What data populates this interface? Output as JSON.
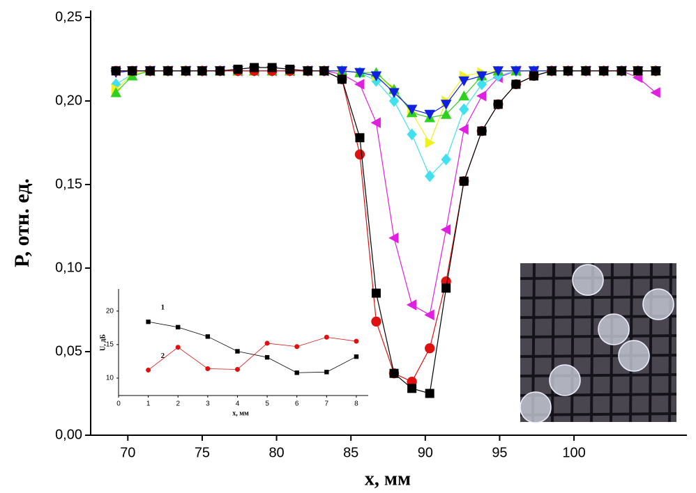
{
  "chart_data": [
    {
      "type": "line",
      "xlabel": "x, мм",
      "ylabel": "P, отн. ед.",
      "x": [
        69.2,
        70.3,
        71.5,
        72.7,
        73.9,
        75.0,
        76.2,
        77.4,
        78.5,
        79.7,
        80.9,
        82.1,
        83.2,
        84.4,
        85.6,
        86.7,
        87.9,
        89.1,
        90.3,
        91.4,
        92.6,
        93.8,
        94.9,
        96.1,
        97.3,
        98.5,
        99.6,
        100.8,
        102.0,
        103.2,
        104.3,
        105.5
      ],
      "xlim": [
        67.5,
        107.5
      ],
      "xticks": [
        70,
        75,
        80,
        85,
        90,
        95,
        100
      ],
      "ylim": [
        0,
        0.25
      ],
      "yticks": [
        {
          "value": 0,
          "label": "0,00"
        },
        {
          "value": 0.05,
          "label": "0,05"
        },
        {
          "value": 0.1,
          "label": "0,10"
        },
        {
          "value": 0.15,
          "label": "0,15"
        },
        {
          "value": 0.2,
          "label": "0,20"
        },
        {
          "value": 0.25,
          "label": "0,25"
        }
      ],
      "series": [
        {
          "color": "#e020e0",
          "marker": "triangle-left",
          "values": [
            0.218,
            0.218,
            0.218,
            0.218,
            0.218,
            0.218,
            0.218,
            0.218,
            0.218,
            0.218,
            0.218,
            0.218,
            0.218,
            0.216,
            0.21,
            0.187,
            0.118,
            0.078,
            0.072,
            0.123,
            0.183,
            0.203,
            0.214,
            0.218,
            0.218,
            0.218,
            0.218,
            0.218,
            0.218,
            0.218,
            0.214,
            0.205
          ]
        },
        {
          "color": "#40e0f0",
          "marker": "diamond",
          "values": [
            0.21,
            0.216,
            0.218,
            0.218,
            0.218,
            0.218,
            0.218,
            0.218,
            0.218,
            0.218,
            0.218,
            0.218,
            0.218,
            0.218,
            0.217,
            0.212,
            0.2,
            0.18,
            0.155,
            0.165,
            0.195,
            0.21,
            0.215,
            0.218,
            0.218,
            0.218,
            0.218,
            0.218,
            0.218,
            0.218,
            0.218,
            0.218
          ]
        },
        {
          "color": "#f0f020",
          "marker": "triangle-right",
          "values": [
            0.207,
            0.216,
            0.218,
            0.218,
            0.218,
            0.218,
            0.218,
            0.218,
            0.218,
            0.218,
            0.218,
            0.218,
            0.218,
            0.218,
            0.217,
            0.215,
            0.207,
            0.193,
            0.175,
            0.2,
            0.215,
            0.217,
            0.218,
            0.218,
            0.218,
            0.218,
            0.218,
            0.218,
            0.218,
            0.218,
            0.218,
            0.218
          ]
        },
        {
          "color": "#30d020",
          "marker": "triangle-up",
          "values": [
            0.205,
            0.215,
            0.218,
            0.218,
            0.218,
            0.218,
            0.218,
            0.218,
            0.218,
            0.218,
            0.218,
            0.218,
            0.218,
            0.218,
            0.217,
            0.217,
            0.207,
            0.193,
            0.19,
            0.192,
            0.203,
            0.215,
            0.218,
            0.218,
            0.218,
            0.218,
            0.218,
            0.218,
            0.218,
            0.218,
            0.218,
            0.218
          ]
        },
        {
          "color": "#1020e0",
          "marker": "triangle-down",
          "values": [
            0.217,
            0.218,
            0.218,
            0.218,
            0.218,
            0.218,
            0.218,
            0.218,
            0.218,
            0.218,
            0.218,
            0.218,
            0.218,
            0.218,
            0.217,
            0.215,
            0.205,
            0.195,
            0.192,
            0.198,
            0.212,
            0.215,
            0.218,
            0.218,
            0.218,
            0.218,
            0.218,
            0.218,
            0.218,
            0.218,
            0.218,
            0.218
          ]
        },
        {
          "color": "#e01010",
          "marker": "circle",
          "values": [
            0.218,
            0.218,
            0.218,
            0.218,
            0.218,
            0.218,
            0.218,
            0.218,
            0.218,
            0.218,
            0.218,
            0.218,
            0.218,
            0.213,
            0.168,
            0.068,
            0.037,
            0.032,
            0.052,
            0.092,
            0.152,
            0.182,
            0.198,
            0.21,
            0.215,
            0.218,
            0.218,
            0.218,
            0.218,
            0.218,
            0.218,
            0.218
          ]
        },
        {
          "color": "#000000",
          "marker": "square",
          "values": [
            0.218,
            0.218,
            0.218,
            0.218,
            0.218,
            0.218,
            0.218,
            0.219,
            0.22,
            0.22,
            0.219,
            0.218,
            0.218,
            0.213,
            0.178,
            0.085,
            0.037,
            0.028,
            0.025,
            0.088,
            0.152,
            0.182,
            0.198,
            0.21,
            0.215,
            0.218,
            0.218,
            0.218,
            0.218,
            0.218,
            0.218,
            0.218
          ]
        }
      ]
    },
    {
      "type": "line",
      "xlabel": "x, мм",
      "ylabel": "U, дБ",
      "x": [
        1,
        2,
        3,
        4,
        5,
        6,
        7,
        8
      ],
      "xlim": [
        0,
        8.4
      ],
      "xticks": [
        0,
        1,
        2,
        3,
        4,
        5,
        6,
        7,
        8
      ],
      "ylim": [
        7.4,
        23.3
      ],
      "yticks": [
        10,
        15,
        20
      ],
      "series": [
        {
          "name": "1",
          "color": "#000000",
          "marker": "square",
          "values": [
            18.4,
            17.6,
            16.2,
            14.0,
            13.1,
            10.8,
            10.9,
            13.2
          ]
        },
        {
          "name": "2",
          "color": "#e01010",
          "marker": "circle",
          "values": [
            11.2,
            14.6,
            11.4,
            11.3,
            15.2,
            14.7,
            16.1,
            15.5
          ]
        }
      ]
    }
  ]
}
